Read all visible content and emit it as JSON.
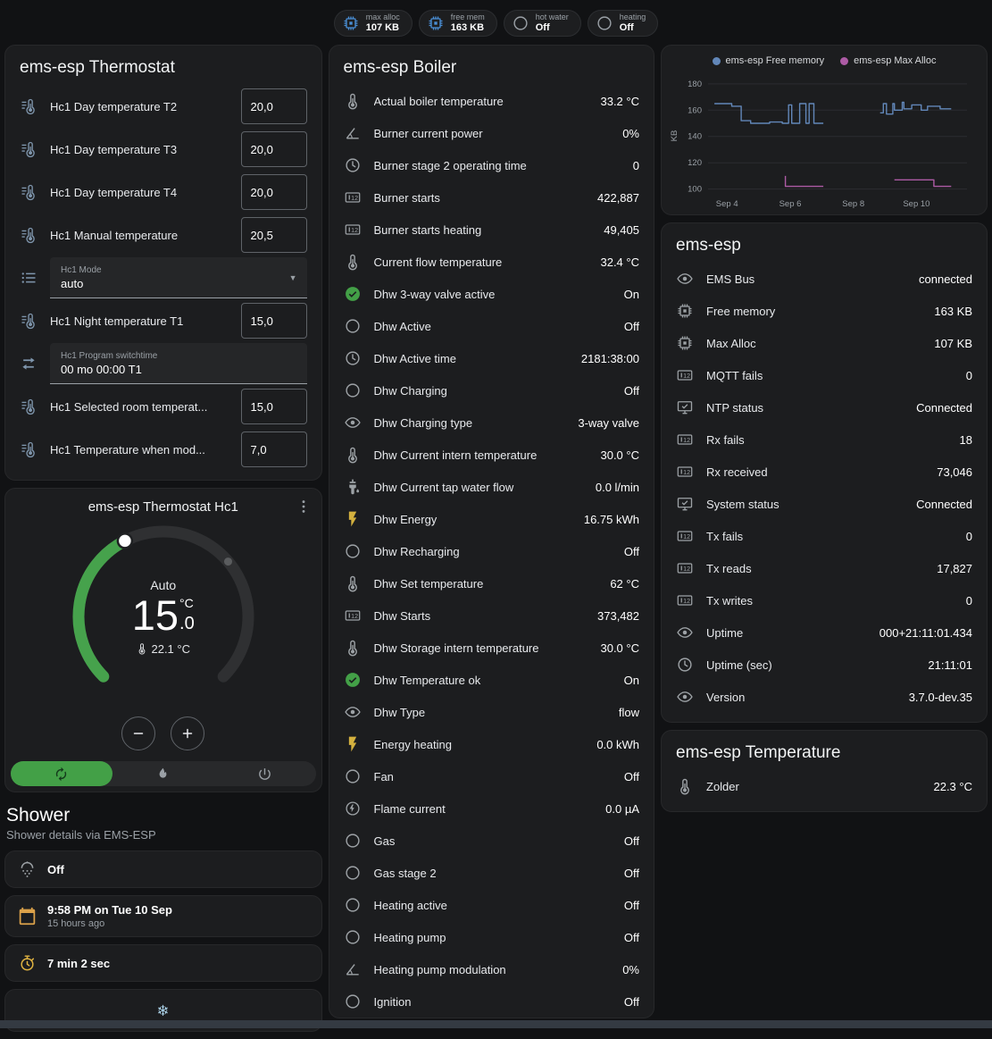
{
  "colors": {
    "accent_green": "#43a047",
    "icon_default": "#9da2a6",
    "icon_blue": "#7f96ad",
    "icon_green": "#43a047",
    "icon_amber": "#d4b13e",
    "badge_icon_blue": "#4a8fd6"
  },
  "header": {
    "badges": [
      {
        "icon": "chip",
        "icon_color": "#4a8fd6",
        "label": "max alloc",
        "value": "107 KB"
      },
      {
        "icon": "chip",
        "icon_color": "#4a8fd6",
        "label": "free mem",
        "value": "163 KB"
      },
      {
        "icon": "circle",
        "icon_color": "#9aa0a6",
        "label": "hot water",
        "value": "Off"
      },
      {
        "icon": "circle",
        "icon_color": "#9aa0a6",
        "label": "heating",
        "value": "Off"
      }
    ]
  },
  "thermostat_card": {
    "title": "ems-esp Thermostat",
    "rows": [
      {
        "name": "hc1-day-temperature-t2",
        "icon": "thermometer-lines",
        "label": "Hc1 Day temperature T2",
        "control": {
          "type": "number",
          "value": "20,0"
        }
      },
      {
        "name": "hc1-day-temperature-t3",
        "icon": "thermometer-lines",
        "label": "Hc1 Day temperature T3",
        "control": {
          "type": "number",
          "value": "20,0"
        }
      },
      {
        "name": "hc1-day-temperature-t4",
        "icon": "thermometer-lines",
        "label": "Hc1 Day temperature T4",
        "control": {
          "type": "number",
          "value": "20,0"
        }
      },
      {
        "name": "hc1-manual-temperature",
        "icon": "thermometer-lines",
        "label": "Hc1 Manual temperature",
        "control": {
          "type": "number",
          "value": "20,5"
        }
      },
      {
        "name": "hc1-mode",
        "icon": "list",
        "control": {
          "type": "select",
          "label": "Hc1 Mode",
          "value": "auto"
        }
      },
      {
        "name": "hc1-night-temperature-t1",
        "icon": "thermometer-lines",
        "label": "Hc1 Night temperature T1",
        "control": {
          "type": "number",
          "value": "15,0"
        }
      },
      {
        "name": "hc1-program-switchtime",
        "icon": "swap",
        "control": {
          "type": "text",
          "label": "Hc1 Program switchtime",
          "value": "00 mo 00:00 T1"
        }
      },
      {
        "name": "hc1-selected-room-temperature",
        "icon": "thermometer-lines",
        "label": "Hc1 Selected room temperat...",
        "control": {
          "type": "number",
          "value": "15,0"
        }
      },
      {
        "name": "hc1-temperature-when-mode",
        "icon": "thermometer-lines",
        "label": "Hc1 Temperature when mod...",
        "control": {
          "type": "number",
          "value": "7,0"
        }
      }
    ]
  },
  "hc1_card": {
    "title": "ems-esp Thermostat Hc1",
    "menu_icon": "dots-vertical",
    "mode_text": "Auto",
    "temp_integer": "15",
    "temp_decimal": ".0",
    "temp_unit": "°C",
    "ambient": "22.1 °C",
    "ambient_icon": "thermometer",
    "buttons": [
      {
        "name": "temp-decrease",
        "icon": "minus"
      },
      {
        "name": "temp-increase",
        "icon": "plus"
      }
    ],
    "modes": [
      {
        "name": "auto",
        "icon": "auto",
        "active": true
      },
      {
        "name": "heat",
        "icon": "flame",
        "active": false
      },
      {
        "name": "off",
        "icon": "power",
        "active": false
      }
    ]
  },
  "shower": {
    "title": "Shower",
    "subtitle": "Shower details via EMS-ESP",
    "items": [
      {
        "name": "shower-state",
        "icon": "shower",
        "icon_color": "#9da2a6",
        "primary": "Off"
      },
      {
        "name": "shower-last-time",
        "icon": "calendar",
        "icon_color": "#dca24a",
        "primary": "9:58 PM on Tue 10 Sep",
        "secondary": "15 hours ago"
      },
      {
        "name": "shower-duration",
        "icon": "timer",
        "icon_color": "#e0b341",
        "primary": "7 min 2 sec"
      },
      {
        "name": "shower-climate",
        "icon": "snowflake",
        "icon_color": "#a9cfe5",
        "primary": "",
        "center": true
      }
    ]
  },
  "boiler_card": {
    "title": "ems-esp Boiler",
    "rows": [
      {
        "icon": "thermometer",
        "label": "Actual boiler temperature",
        "value": "33.2 °C"
      },
      {
        "icon": "angle",
        "label": "Burner current power",
        "value": "0%"
      },
      {
        "icon": "clock",
        "label": "Burner stage 2 operating time",
        "value": "0"
      },
      {
        "icon": "counter",
        "label": "Burner starts",
        "value": "422,887"
      },
      {
        "icon": "counter",
        "label": "Burner starts heating",
        "value": "49,405"
      },
      {
        "icon": "thermometer",
        "label": "Current flow temperature",
        "value": "32.4 °C"
      },
      {
        "icon": "check-circle",
        "icon_color": "#43a047",
        "label": "Dhw 3-way valve active",
        "value": "On"
      },
      {
        "icon": "circle",
        "label": "Dhw Active",
        "value": "Off"
      },
      {
        "icon": "clock",
        "label": "Dhw Active time",
        "value": "2181:38:00"
      },
      {
        "icon": "circle",
        "label": "Dhw Charging",
        "value": "Off"
      },
      {
        "icon": "eye",
        "label": "Dhw Charging type",
        "value": "3-way valve"
      },
      {
        "icon": "thermometer",
        "label": "Dhw Current intern temperature",
        "value": "30.0 °C"
      },
      {
        "icon": "pump",
        "label": "Dhw Current tap water flow",
        "value": "0.0 l/min"
      },
      {
        "icon": "flash",
        "icon_color": "#d4b13e",
        "label": "Dhw Energy",
        "value": "16.75 kWh"
      },
      {
        "icon": "circle",
        "label": "Dhw Recharging",
        "value": "Off"
      },
      {
        "icon": "thermometer",
        "label": "Dhw Set temperature",
        "value": "62 °C"
      },
      {
        "icon": "counter",
        "label": "Dhw Starts",
        "value": "373,482"
      },
      {
        "icon": "thermometer",
        "label": "Dhw Storage intern temperature",
        "value": "30.0 °C"
      },
      {
        "icon": "check-circle",
        "icon_color": "#43a047",
        "label": "Dhw Temperature ok",
        "value": "On"
      },
      {
        "icon": "eye",
        "label": "Dhw Type",
        "value": "flow"
      },
      {
        "icon": "flash",
        "icon_color": "#d4b13e",
        "label": "Energy heating",
        "value": "0.0 kWh"
      },
      {
        "icon": "circle",
        "label": "Fan",
        "value": "Off"
      },
      {
        "icon": "flash-circle",
        "label": "Flame current",
        "value": "0.0 µA"
      },
      {
        "icon": "circle",
        "label": "Gas",
        "value": "Off"
      },
      {
        "icon": "circle",
        "label": "Gas stage 2",
        "value": "Off"
      },
      {
        "icon": "circle",
        "label": "Heating active",
        "value": "Off"
      },
      {
        "icon": "circle",
        "label": "Heating pump",
        "value": "Off"
      },
      {
        "icon": "angle",
        "label": "Heating pump modulation",
        "value": "0%"
      },
      {
        "icon": "circle",
        "label": "Ignition",
        "value": "Off"
      }
    ]
  },
  "emsesp_card": {
    "title": "ems-esp",
    "rows": [
      {
        "icon": "eye",
        "label": "EMS Bus",
        "value": "connected"
      },
      {
        "icon": "chip",
        "label": "Free memory",
        "value": "163 KB"
      },
      {
        "icon": "chip",
        "label": "Max Alloc",
        "value": "107 KB"
      },
      {
        "icon": "counter",
        "label": "MQTT fails",
        "value": "0"
      },
      {
        "icon": "monitor",
        "label": "NTP status",
        "value": "Connected"
      },
      {
        "icon": "counter",
        "label": "Rx fails",
        "value": "18"
      },
      {
        "icon": "counter",
        "label": "Rx received",
        "value": "73,046"
      },
      {
        "icon": "monitor",
        "label": "System status",
        "value": "Connected"
      },
      {
        "icon": "counter",
        "label": "Tx fails",
        "value": "0"
      },
      {
        "icon": "counter",
        "label": "Tx reads",
        "value": "17,827"
      },
      {
        "icon": "counter",
        "label": "Tx writes",
        "value": "0"
      },
      {
        "icon": "eye",
        "label": "Uptime",
        "value": "000+21:11:01.434"
      },
      {
        "icon": "clock",
        "label": "Uptime (sec)",
        "value": "21:11:01"
      },
      {
        "icon": "eye",
        "label": "Version",
        "value": "3.7.0-dev.35"
      }
    ]
  },
  "temperature_card": {
    "title": "ems-esp Temperature",
    "rows": [
      {
        "icon": "thermometer",
        "label": "Zolder",
        "value": "22.3 °C"
      }
    ]
  },
  "chart_data": {
    "type": "line",
    "title": "",
    "xlabel": "",
    "ylabel": "KB",
    "grid": true,
    "legend_position": "top",
    "xlim": [
      3.4,
      11.6
    ],
    "ylim": [
      97,
      184
    ],
    "y_ticks": [
      100,
      120,
      140,
      160,
      180
    ],
    "x_ticks": [
      {
        "v": 4,
        "label": "Sep 4"
      },
      {
        "v": 6,
        "label": "Sep 6"
      },
      {
        "v": 8,
        "label": "Sep 8"
      },
      {
        "v": 10,
        "label": "Sep 10"
      }
    ],
    "series": [
      {
        "name": "ems-esp Free memory",
        "color": "#6287b9",
        "segments": [
          [
            [
              3.6,
              165
            ],
            [
              4.15,
              165
            ],
            [
              4.15,
              163
            ],
            [
              4.45,
              163
            ],
            [
              4.45,
              152
            ],
            [
              4.75,
              152
            ],
            [
              4.75,
              150
            ],
            [
              5.35,
              150
            ],
            [
              5.35,
              151
            ],
            [
              5.75,
              151
            ],
            [
              5.75,
              150
            ],
            [
              5.95,
              150
            ],
            [
              5.95,
              164
            ],
            [
              6.05,
              164
            ],
            [
              6.05,
              150
            ],
            [
              6.3,
              150
            ],
            [
              6.3,
              165
            ],
            [
              6.5,
              165
            ],
            [
              6.5,
              150
            ],
            [
              6.6,
              150
            ],
            [
              6.6,
              165
            ],
            [
              6.75,
              165
            ],
            [
              6.75,
              150
            ],
            [
              7.05,
              150
            ]
          ],
          [
            [
              8.85,
              158
            ],
            [
              8.95,
              158
            ],
            [
              8.95,
              165
            ],
            [
              9.05,
              165
            ],
            [
              9.05,
              157
            ],
            [
              9.25,
              157
            ],
            [
              9.25,
              165
            ],
            [
              9.3,
              165
            ],
            [
              9.3,
              160
            ],
            [
              9.55,
              160
            ],
            [
              9.55,
              166
            ],
            [
              9.6,
              166
            ],
            [
              9.6,
              161
            ],
            [
              9.85,
              161
            ],
            [
              9.85,
              164
            ],
            [
              10.15,
              164
            ],
            [
              10.15,
              160
            ],
            [
              10.35,
              160
            ],
            [
              10.35,
              163
            ],
            [
              10.75,
              163
            ],
            [
              10.75,
              161
            ],
            [
              11.1,
              161
            ]
          ]
        ]
      },
      {
        "name": "ems-esp Max Alloc",
        "color": "#ad5ba5",
        "segments": [
          [
            [
              5.85,
              110
            ],
            [
              5.85,
              102
            ],
            [
              7.05,
              102
            ]
          ],
          [
            [
              9.3,
              107
            ],
            [
              10.55,
              107
            ],
            [
              10.55,
              102
            ],
            [
              11.1,
              102
            ]
          ]
        ]
      }
    ]
  }
}
